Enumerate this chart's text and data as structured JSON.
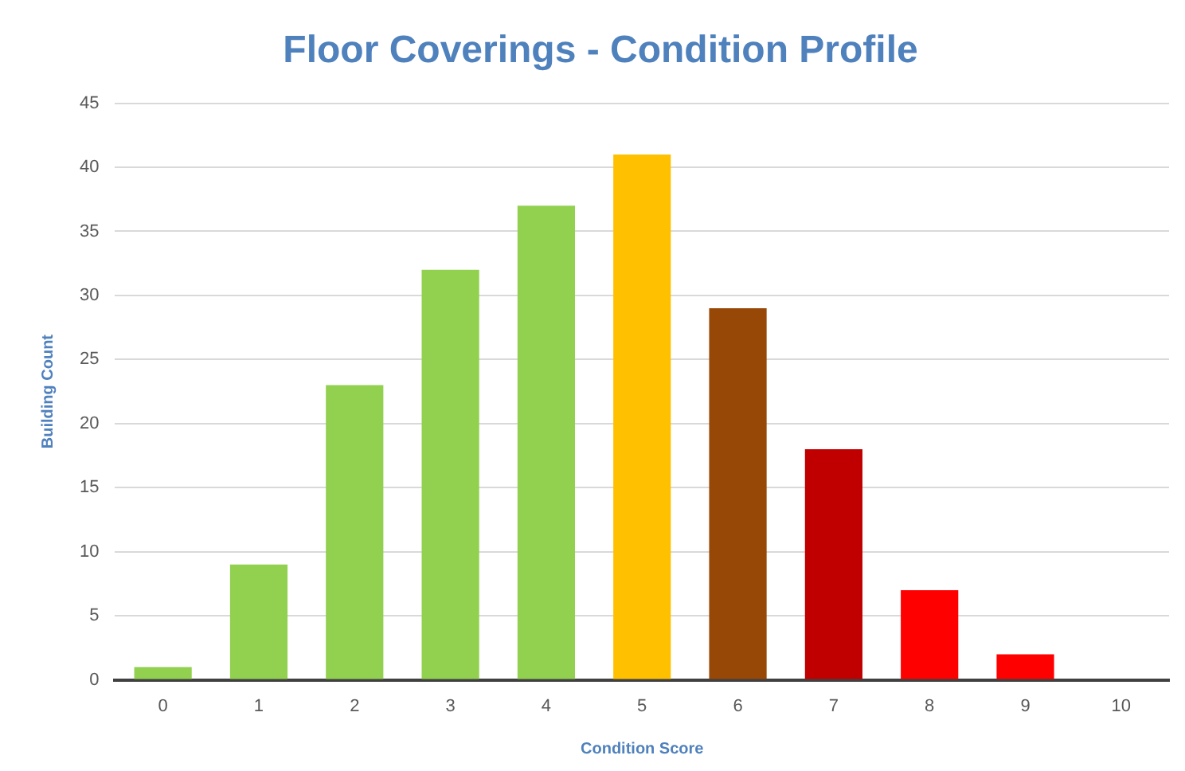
{
  "chart_data": {
    "type": "bar",
    "title": "Floor Coverings - Condition Profile",
    "xlabel": "Condition Score",
    "ylabel": "Building Count",
    "categories": [
      "0",
      "1",
      "2",
      "3",
      "4",
      "5",
      "6",
      "7",
      "8",
      "9",
      "10"
    ],
    "values": [
      1,
      9,
      23,
      32,
      37,
      41,
      29,
      18,
      7,
      2,
      0
    ],
    "colors": [
      "#92d050",
      "#92d050",
      "#92d050",
      "#92d050",
      "#92d050",
      "#ffc000",
      "#974706",
      "#c00000",
      "#ff0000",
      "#ff0000",
      "#ff0000"
    ],
    "ylim": [
      0,
      45
    ],
    "yticks": [
      0,
      5,
      10,
      15,
      20,
      25,
      30,
      35,
      40,
      45
    ],
    "grid": "y",
    "legend": false
  }
}
